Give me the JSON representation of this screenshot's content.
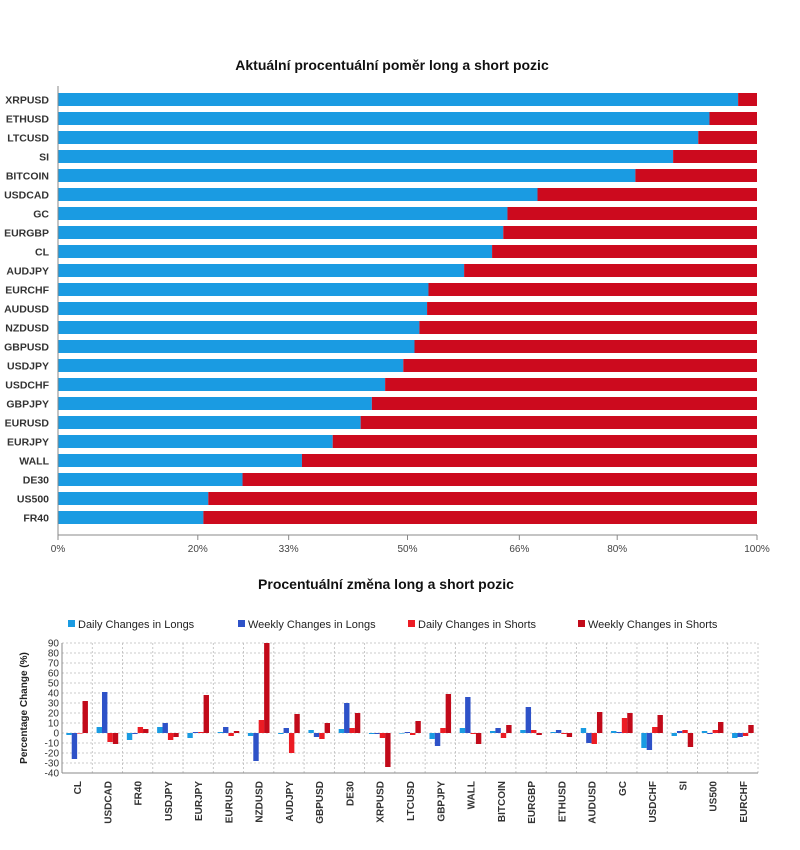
{
  "colors": {
    "long": "#1a9be2",
    "short": "#cc0a1e",
    "daily_long": "#1a9be2",
    "weekly_long": "#2e52c8",
    "daily_short": "#ec1c24",
    "weekly_short": "#c20a1a",
    "axis": "#888888",
    "grid": "#bbbbbb"
  },
  "chart_data": [
    {
      "type": "bar",
      "orientation": "horizontal-stacked-100",
      "title": "Aktuální procentuální poměr long a short pozic",
      "categories": [
        "XRPUSD",
        "ETHUSD",
        "LTCUSD",
        "SI",
        "BITCOIN",
        "USDCAD",
        "GC",
        "EURGBP",
        "CL",
        "AUDJPY",
        "EURCHF",
        "AUDUSD",
        "NZDUSD",
        "GBPUSD",
        "USDJPY",
        "USDCHF",
        "GBPJPY",
        "EURUSD",
        "EURJPY",
        "WALL",
        "DE30",
        "US500",
        "FR40"
      ],
      "series": [
        {
          "name": "Long",
          "values": [
            97.3,
            93.2,
            91.6,
            88.0,
            82.6,
            68.6,
            64.3,
            63.7,
            62.1,
            58.1,
            53.0,
            52.8,
            51.7,
            51.0,
            49.4,
            46.8,
            44.9,
            43.3,
            39.3,
            34.9,
            26.4,
            21.5,
            20.8
          ]
        },
        {
          "name": "Short",
          "values": [
            2.7,
            6.8,
            8.4,
            12.0,
            17.4,
            31.4,
            35.7,
            36.3,
            37.9,
            41.9,
            47.0,
            47.2,
            48.3,
            49.0,
            50.6,
            53.2,
            55.1,
            56.7,
            60.7,
            65.1,
            73.6,
            78.5,
            79.2
          ]
        }
      ],
      "x_ticks": [
        "0%",
        "20%",
        "33%",
        "50%",
        "66%",
        "80%",
        "100%"
      ],
      "x_tick_values": [
        0,
        20,
        33,
        50,
        66,
        80,
        100
      ],
      "xlim": [
        0,
        100
      ]
    },
    {
      "type": "bar",
      "orientation": "vertical-grouped",
      "title": "Procentuální změna long a short pozic",
      "ylabel": "Percentage Change (%)",
      "categories": [
        "CL",
        "USDCAD",
        "FR40",
        "USDJPY",
        "EURJPY",
        "EURUSD",
        "NZDUSD",
        "AUDJPY",
        "GBPUSD",
        "DE30",
        "XRPUSD",
        "LTCUSD",
        "GBPJPY",
        "WALL",
        "BITCOIN",
        "EURGBP",
        "ETHUSD",
        "AUDUSD",
        "GC",
        "USDCHF",
        "SI",
        "US500",
        "EURCHF"
      ],
      "series": [
        {
          "name": "Daily Changes in Longs",
          "values": [
            -2,
            6,
            -7,
            6,
            -5,
            1,
            -3,
            -1,
            3,
            4,
            -1,
            0,
            -6,
            5,
            2,
            3,
            1,
            5,
            2,
            -15,
            -3,
            2,
            -5
          ]
        },
        {
          "name": "Weekly Changes in Longs",
          "values": [
            -26,
            41,
            -1,
            10,
            1,
            6,
            -28,
            5,
            -4,
            30,
            -1,
            1,
            -13,
            36,
            5,
            26,
            3,
            -10,
            1,
            -17,
            2,
            -1,
            -4
          ]
        },
        {
          "name": "Daily Changes in Shorts",
          "values": [
            0,
            -9,
            6,
            -7,
            1,
            -3,
            13,
            -20,
            -6,
            5,
            -5,
            -2,
            5,
            -1,
            -5,
            3,
            -1,
            -11,
            15,
            6,
            3,
            3,
            -3
          ]
        },
        {
          "name": "Weekly Changes in Shorts",
          "values": [
            32,
            -11,
            4,
            -4,
            38,
            2,
            90,
            19,
            10,
            20,
            -34,
            12,
            39,
            -11,
            8,
            -2,
            -4,
            21,
            20,
            18,
            -14,
            11,
            8
          ]
        }
      ],
      "y_ticks": [
        90,
        80,
        70,
        60,
        50,
        40,
        30,
        20,
        10,
        0,
        -10,
        -20,
        -30,
        -40
      ],
      "ylim": [
        -40,
        90
      ],
      "legend_position": "top",
      "grid": true
    }
  ]
}
